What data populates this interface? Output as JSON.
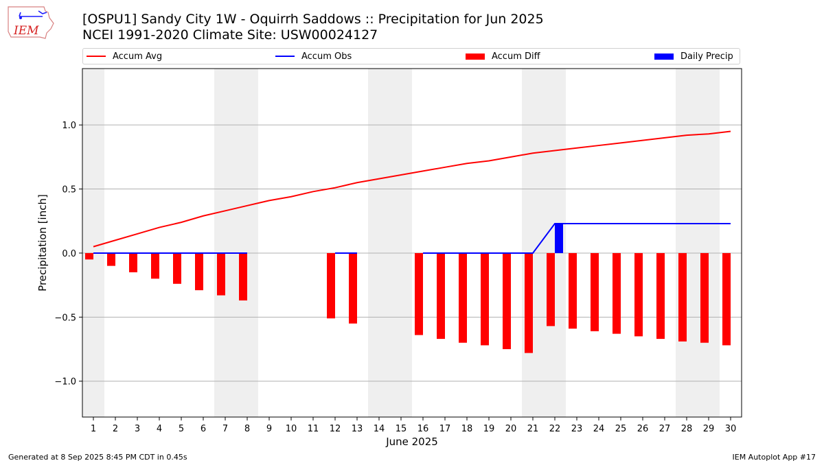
{
  "header": {
    "logo_text": "IEM",
    "title_line1": "[OSPU1] Sandy City 1W - Oquirrh Saddows :: Precipitation for Jun 2025",
    "title_line2": "NCEI 1991-2020 Climate Site: USW00024127"
  },
  "footer": {
    "generated": "Generated at 8 Sep 2025 8:45 PM CDT in 0.45s",
    "app": "IEM Autoplot App #17"
  },
  "colors": {
    "accum_avg": "#ff0000",
    "accum_obs": "#0000ff",
    "accum_diff": "#ff0000",
    "daily_precip": "#0000ff",
    "weekend_shade": "#efefef",
    "grid": "#b0b0b0"
  },
  "chart_data": {
    "type": "bar",
    "xlabel": "June 2025",
    "ylabel": "Precipitation [inch]",
    "ylim": [
      -1.28,
      1.44
    ],
    "xlim": [
      0.5,
      30.5
    ],
    "yticks": [
      -1.0,
      -0.5,
      0.0,
      0.5,
      1.0
    ],
    "ytick_labels": [
      "−1.0",
      "−0.5",
      "0.0",
      "0.5",
      "1.0"
    ],
    "grid": "horizontal",
    "legend_position": "top",
    "days": [
      1,
      2,
      3,
      4,
      5,
      6,
      7,
      8,
      9,
      10,
      11,
      12,
      13,
      14,
      15,
      16,
      17,
      18,
      19,
      20,
      21,
      22,
      23,
      24,
      25,
      26,
      27,
      28,
      29,
      30
    ],
    "shaded_weekends": [
      [
        0.5,
        1.5
      ],
      [
        6.5,
        8.5
      ],
      [
        13.5,
        15.5
      ],
      [
        20.5,
        22.5
      ],
      [
        27.5,
        29.5
      ]
    ],
    "series": [
      {
        "name": "Accum Avg",
        "kind": "line",
        "values": [
          0.05,
          0.1,
          0.15,
          0.2,
          0.24,
          0.29,
          0.33,
          0.37,
          0.41,
          0.44,
          0.48,
          0.51,
          0.55,
          0.58,
          0.61,
          0.64,
          0.67,
          0.7,
          0.72,
          0.75,
          0.78,
          0.8,
          0.82,
          0.84,
          0.86,
          0.88,
          0.9,
          0.92,
          0.93,
          0.95
        ]
      },
      {
        "name": "Accum Obs",
        "kind": "line",
        "values": [
          0.0,
          0.0,
          0.0,
          0.0,
          0.0,
          0.0,
          0.0,
          0.0,
          null,
          null,
          null,
          0.0,
          0.0,
          null,
          null,
          0.0,
          0.0,
          0.0,
          0.0,
          0.0,
          0.0,
          0.23,
          0.23,
          0.23,
          0.23,
          0.23,
          0.23,
          0.23,
          0.23,
          0.23
        ]
      },
      {
        "name": "Accum Diff",
        "kind": "bar",
        "values": [
          -0.05,
          -0.1,
          -0.15,
          -0.2,
          -0.24,
          -0.29,
          -0.33,
          -0.37,
          null,
          null,
          null,
          -0.51,
          -0.55,
          null,
          null,
          -0.64,
          -0.67,
          -0.7,
          -0.72,
          -0.75,
          -0.78,
          -0.57,
          -0.59,
          -0.61,
          -0.63,
          -0.65,
          -0.67,
          -0.69,
          -0.7,
          -0.72
        ]
      },
      {
        "name": "Daily Precip",
        "kind": "bar",
        "values": [
          0,
          0,
          0,
          0,
          0,
          0,
          0,
          0,
          null,
          null,
          null,
          0,
          0,
          null,
          null,
          0,
          0,
          0,
          0,
          0,
          0,
          0.23,
          0,
          0,
          0,
          0,
          0,
          0,
          0,
          0
        ]
      }
    ]
  }
}
